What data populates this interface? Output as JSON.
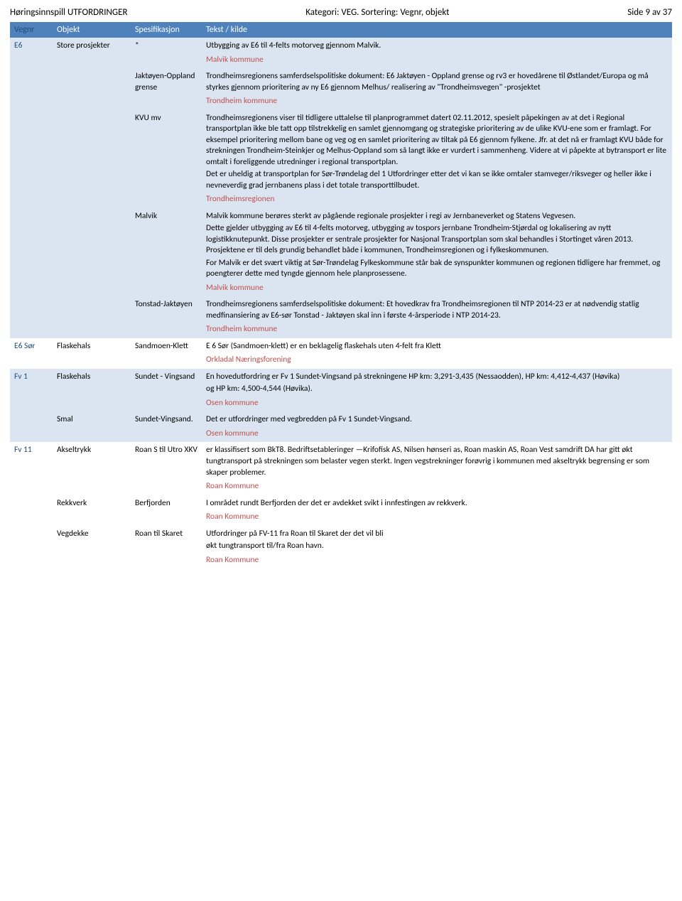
{
  "header": {
    "left": "Høringsinnspill UTFORDRINGER",
    "center": "Kategori: VEG.  Sortering: Vegnr, objekt",
    "right": "Side 9 av 37"
  },
  "columns": [
    "Vegnr",
    "Objekt",
    "Spesifikasjon",
    "Tekst / kilde"
  ],
  "rows": [
    {
      "bg": "light",
      "vegnr": "E6",
      "objekt": "Store prosjekter",
      "spes": "*",
      "tekst": "Utbygging av E6 til 4-felts motorveg gjennom Malvik.",
      "source": "Malvik kommune"
    },
    {
      "bg": "light",
      "vegnr": "",
      "objekt": "",
      "spes": "Jaktøyen-Oppland grense",
      "tekst": "Trondheimsregionens samferdselspolitiske dokument: E6 Jaktøyen - Oppland grense og rv3 er hovedårene til Østlandet/Europa og må styrkes gjennom prioritering av ny E6 gjennom Melhus/ realisering av \"Trondheimsvegen\" -prosjektet",
      "source": "Trondheim kommune"
    },
    {
      "bg": "light",
      "vegnr": "",
      "objekt": "",
      "spes": "KVU mv",
      "tekst": "Trondheimsregionens viser til tidligere uttalelse til planprogrammet datert 02.11.2012, spesielt påpekingen av at det i Regional transportplan ikke ble tatt opp tilstrekkelig en samlet gjennomgang og strategiske prioritering av de ulike KVU-ene som er framlagt. For eksempel prioritering mellom bane og veg og en samlet prioritering av tiltak på E6 gjennom fylkene. Jfr. at det nå er framlagt KVU både for strekningen Trondheim-Steinkjer og Melhus-Oppland som så langt ikke er vurdert i sammenheng. Videre at vi påpekte at bytransport er lite omtalt i foreliggende utredninger i regional transportplan.\nDet er uheldig at transportplan for Sør-Trøndelag del 1 Utfordringer etter det vi kan se ikke omtaler stamveger/riksveger og heller ikke i nevneverdig grad jernbanens plass i det totale transporttilbudet.",
      "source": "Trondheimsregionen"
    },
    {
      "bg": "light",
      "vegnr": "",
      "objekt": "",
      "spes": "Malvik",
      "tekst": "Malvik kommune berøres sterkt av pågående regionale prosjekter i regi av Jernbaneverket og Statens Vegvesen.\nDette gjelder utbygging av E6 til 4-felts motorveg, utbygging av tospors jernbane Trondheim-Stjørdal og lokalisering av nytt logistikknutepunkt. Disse prosjekter er sentrale prosjekter for Nasjonal Transportplan som skal behandles i Stortinget våren 2013. Prosjektene er til dels grundig behandlet både i kommunen, Trondheimsregionen og i fylkeskommunen.\nFor Malvik er det svært viktig at Sør-Trøndelag Fylkeskommune står bak de synspunkter kommunen og regionen tidligere har fremmet, og poengterer dette med tyngde gjennom hele planprosessene.",
      "source": "Malvik kommune"
    },
    {
      "bg": "light",
      "vegnr": "",
      "objekt": "",
      "spes": "Tonstad-Jaktøyen",
      "tekst": "Trondheimsregionens samferdselspolitiske dokument: Et hovedkrav fra Trondheimsregionen til NTP 2014-23 er at nødvendig statlig medfinansiering av E6-sør Tonstad - Jaktøyen skal inn i første 4-årsperiode i NTP 2014-23.",
      "source": "Trondheim kommune"
    },
    {
      "bg": "blank",
      "vegnr": "E6 Sør",
      "objekt": "Flaskehals",
      "spes": "Sandmoen-Klett",
      "tekst": "E 6 Sør (Sandmoen-klett) er en beklagelig flaskehals uten 4-felt fra Klett",
      "source": "Orkladal Næringsforening"
    },
    {
      "bg": "light",
      "vegnr": "Fv 1",
      "objekt": "Flaskehals",
      "spes": "Sundet - Vingsand",
      "tekst": "En hovedutfordring er Fv 1 Sundet-Vingsand på strekningene HP km: 3,291-3,435 (Nessaodden), HP km: 4,412-4,437 (Høvika)\nog HP km: 4,500-4,544 (Høvika).",
      "source": "Osen kommune"
    },
    {
      "bg": "light",
      "vegnr": "",
      "objekt": "Smal",
      "spes": "Sundet-Vingsand.",
      "tekst": "Det er utfordringer med vegbredden på Fv 1 Sundet-Vingsand.",
      "source": "Osen kommune"
    },
    {
      "bg": "blank",
      "vegnr": "Fv 11",
      "objekt": "Akseltrykk",
      "spes": "Roan S til Utro XKV",
      "tekst": "er klassifisert som BkT8. Bedriftsetableringer —Krifofisk AS, Nilsen hønseri as, Roan maskin AS, Roan Vest samdrift DA har gitt økt tungtransport på strekningen som belaster vegen sterkt. Ingen vegstrekninger forøvrig i kommunen med akseltrykk begrensing er som skaper problemer.",
      "source": "Roan Kommune"
    },
    {
      "bg": "blank",
      "vegnr": "",
      "objekt": "Rekkverk",
      "spes": "Berfjorden",
      "tekst": "I området rundt Berfjorden der det er avdekket svikt i innfestingen av rekkverk.",
      "source": "Roan Kommune"
    },
    {
      "bg": "blank",
      "vegnr": "",
      "objekt": "Vegdekke",
      "spes": "Roan til Skaret",
      "tekst": "Utfordringer på FV-11 fra Roan til Skaret der det vil bli\nøkt tungtransport til/fra Roan havn.",
      "source": "Roan Kommune"
    }
  ],
  "colors": {
    "header_bg": "#4f81bd",
    "header_text": "#ffffff",
    "row_light": "#dbe5f1",
    "row_blank": "#ffffff",
    "vegnr_color": "#1f4e79",
    "source_color": "#c0504d"
  }
}
